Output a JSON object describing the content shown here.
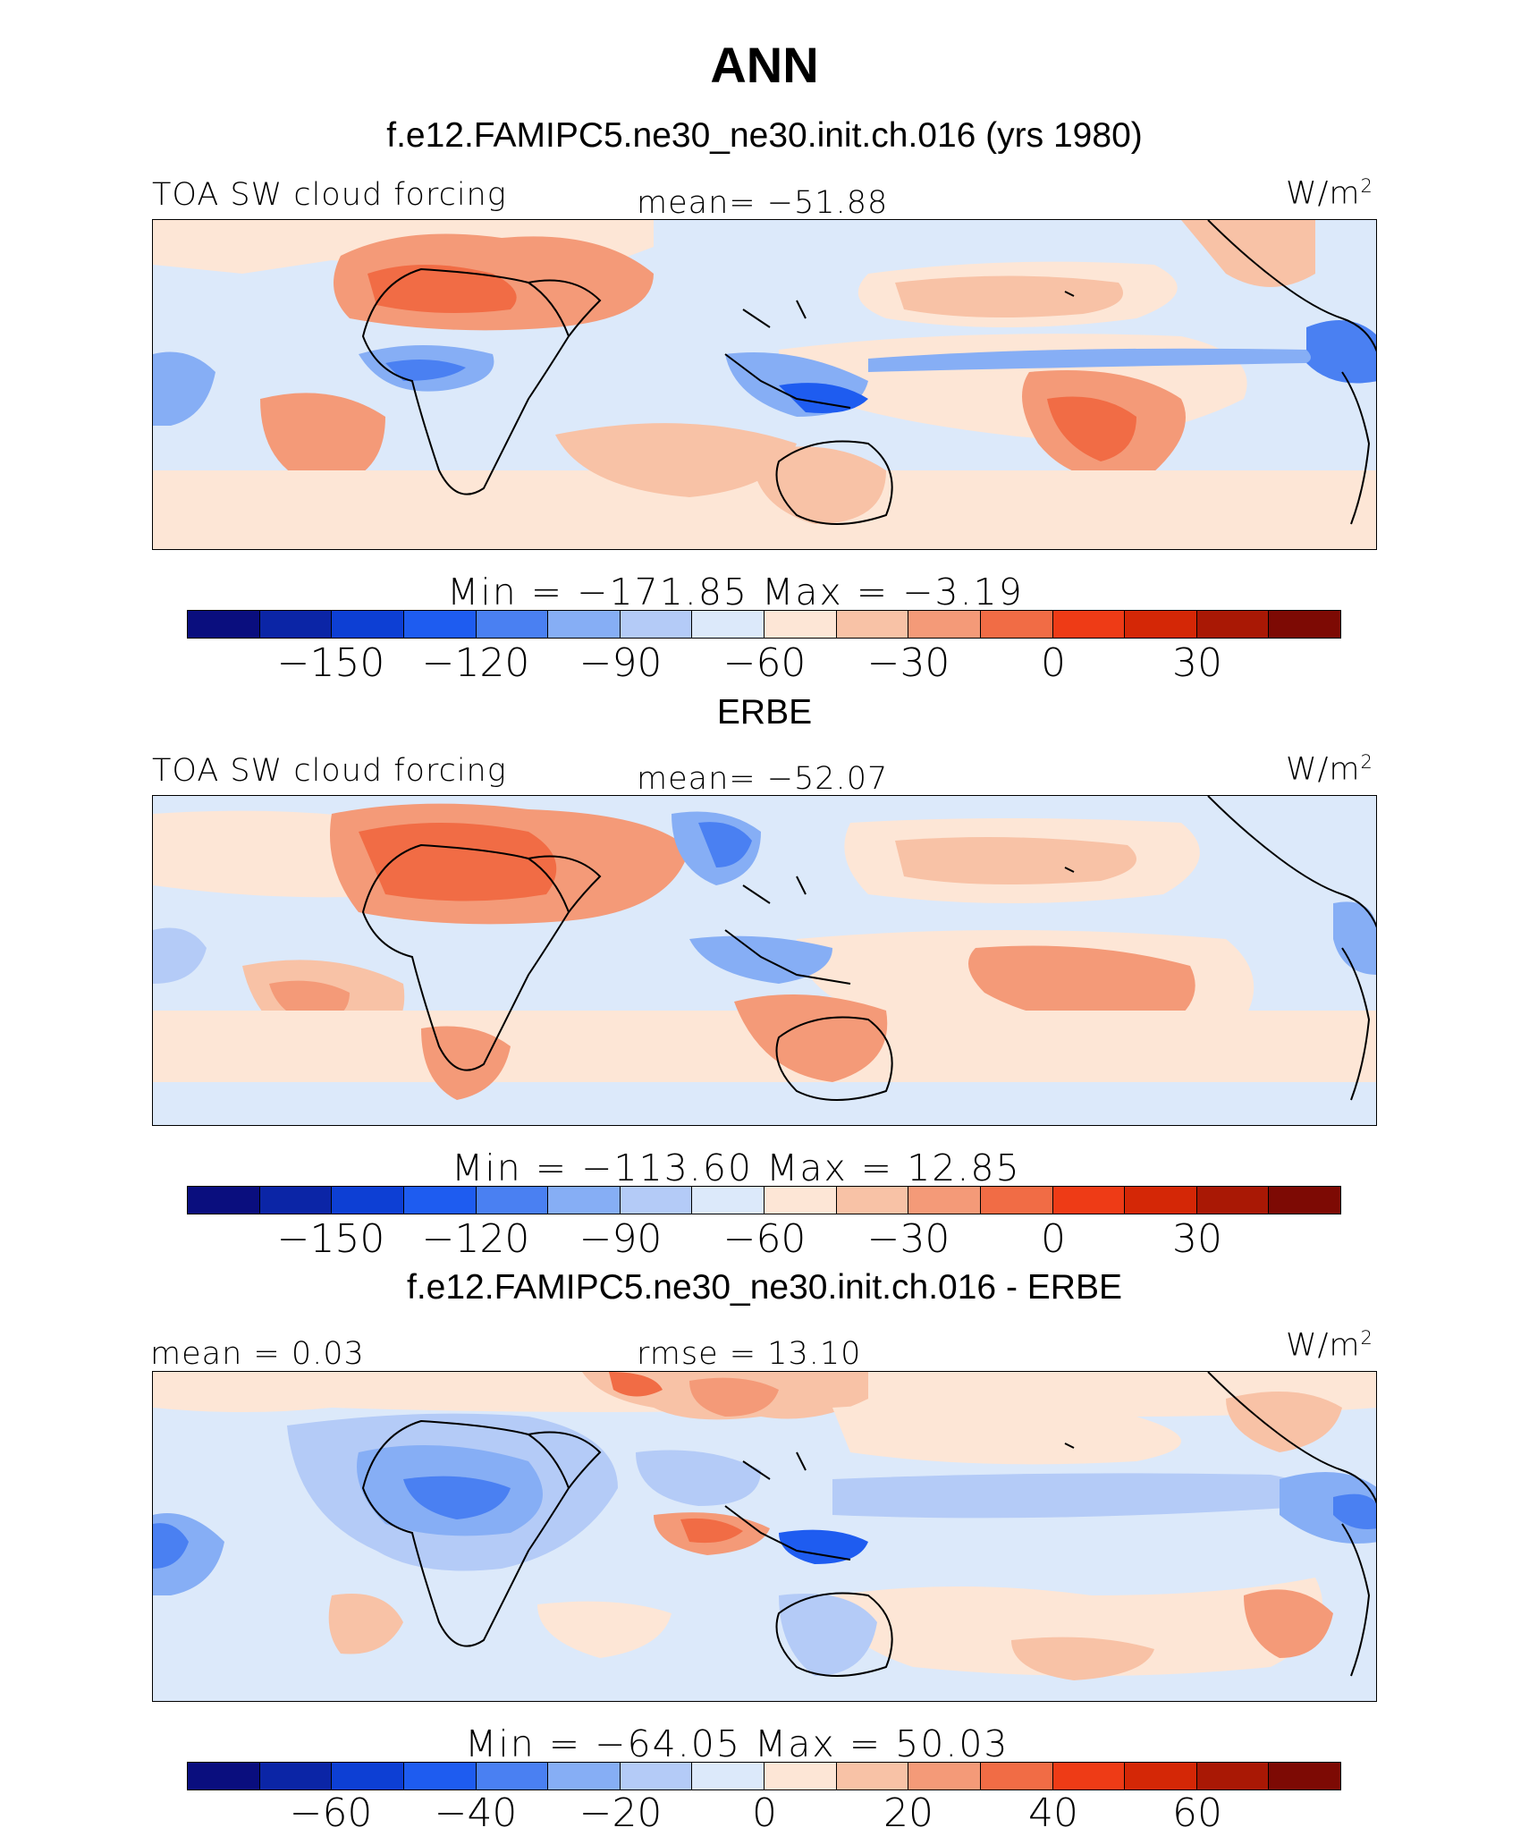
{
  "title": "ANN",
  "colorbar_colors": [
    "#0a0e7e",
    "#0b25a6",
    "#0d3fd4",
    "#1e5cf0",
    "#4a80f2",
    "#86aef5",
    "#b4cbf7",
    "#dce9fa",
    "#fde6d6",
    "#f8c2a6",
    "#f49a78",
    "#f16c45",
    "#ee3b16",
    "#d42706",
    "#a91805",
    "#7d0a04"
  ],
  "panels": [
    {
      "title": "f.e12.FAMIPC5.ne30_ne30.init.ch.016 (yrs 1980)",
      "left_label": "TOA SW cloud forcing",
      "center_label": "mean= −51.88",
      "units_label": "W/m",
      "units_sup": "2",
      "minmax": "Min  =  −171.85  Max  =    −3.19",
      "ticks": [
        "−150",
        "−120",
        "−90",
        "−60",
        "−30",
        "0",
        "30"
      ]
    },
    {
      "title": "ERBE",
      "left_label": "TOA SW cloud forcing",
      "center_label": "mean= −52.07",
      "units_label": "W/m",
      "units_sup": "2",
      "minmax": "Min  =  −113.60  Max  =    12.85",
      "ticks": [
        "−150",
        "−120",
        "−90",
        "−60",
        "−30",
        "0",
        "30"
      ]
    },
    {
      "title": "f.e12.FAMIPC5.ne30_ne30.init.ch.016 - ERBE",
      "left_label": "mean  =    0.03",
      "center_label": "rmse  =   13.10",
      "units_label": "W/m",
      "units_sup": "2",
      "minmax": "Min  =  −64.05  Max  =    50.03",
      "ticks": [
        "−60",
        "−40",
        "−20",
        "0",
        "20",
        "40",
        "60"
      ]
    }
  ]
}
